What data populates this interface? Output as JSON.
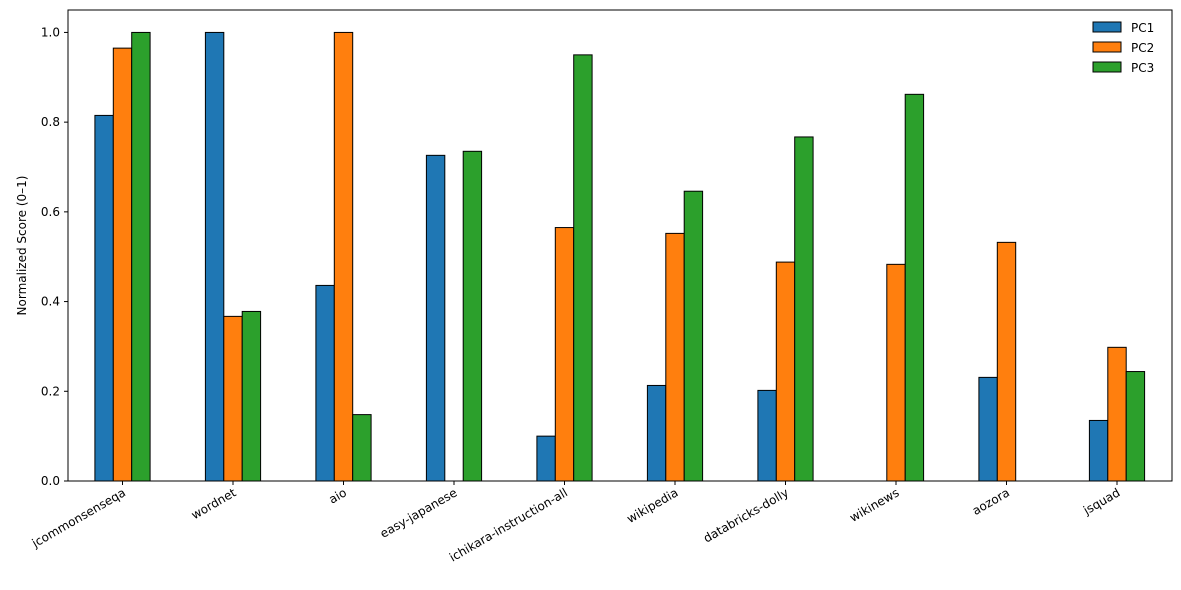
{
  "chart_data": {
    "type": "bar",
    "title": "",
    "xlabel": "",
    "ylabel": "Normalized Score (0–1)",
    "ylim": [
      0,
      1.05
    ],
    "yticks": [
      "0.0",
      "0.2",
      "0.4",
      "0.6",
      "0.8",
      "1.0"
    ],
    "grid": false,
    "legend_position": "top-right",
    "categories": [
      "jcommonsenseqa",
      "wordnet",
      "aio",
      "easy-japanese",
      "ichikara-instruction-all",
      "wikipedia",
      "databricks-dolly",
      "wikinews",
      "aozora",
      "jsquad"
    ],
    "series": [
      {
        "name": "PC1",
        "color": "#1f77b4",
        "values": [
          0.815,
          1.0,
          0.436,
          0.726,
          0.1,
          0.213,
          0.202,
          0.0,
          0.231,
          0.135
        ]
      },
      {
        "name": "PC2",
        "color": "#ff7f0e",
        "values": [
          0.965,
          0.367,
          1.0,
          0.0,
          0.565,
          0.552,
          0.488,
          0.483,
          0.532,
          0.298
        ]
      },
      {
        "name": "PC3",
        "color": "#2ca02c",
        "values": [
          1.0,
          0.378,
          0.148,
          0.735,
          0.95,
          0.646,
          0.767,
          0.862,
          0.0,
          0.244
        ]
      }
    ]
  }
}
